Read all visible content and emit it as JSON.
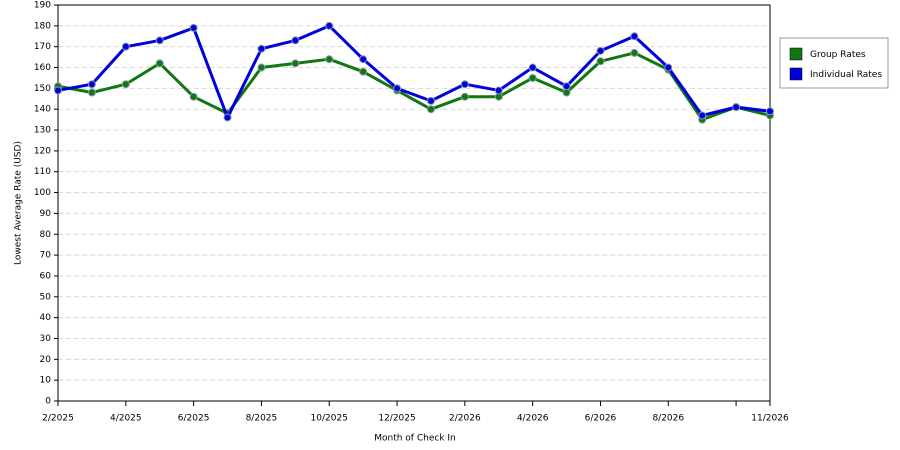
{
  "chart_data": {
    "type": "line",
    "x_label": "Month of Check In",
    "y_label": "Lowest Average Rate (USD)",
    "categories": [
      "2/2025",
      null,
      "4/2025",
      null,
      "6/2025",
      null,
      "8/2025",
      null,
      "10/2025",
      null,
      "12/2025",
      null,
      "2/2026",
      null,
      "4/2026",
      null,
      "6/2026",
      null,
      "8/2026",
      null,
      null,
      "11/2026"
    ],
    "series": [
      {
        "name": "Group Rates",
        "color": "#117711",
        "values": [
          151,
          148,
          152,
          162,
          146,
          138,
          160,
          162,
          164,
          158,
          149,
          140,
          146,
          146,
          155,
          148,
          163,
          167,
          159,
          135,
          141,
          137
        ]
      },
      {
        "name": "Individual Rates",
        "color": "#0000dd",
        "values": [
          149,
          152,
          170,
          173,
          179,
          136,
          169,
          173,
          180,
          164,
          150,
          144,
          152,
          149,
          160,
          151,
          168,
          175,
          160,
          137,
          141,
          139
        ]
      }
    ],
    "ylim": [
      0,
      190
    ],
    "yticks": [
      0,
      10,
      20,
      30,
      40,
      50,
      60,
      70,
      80,
      90,
      100,
      110,
      120,
      130,
      140,
      150,
      160,
      170,
      180,
      190
    ],
    "grid": true,
    "legend": "right"
  }
}
